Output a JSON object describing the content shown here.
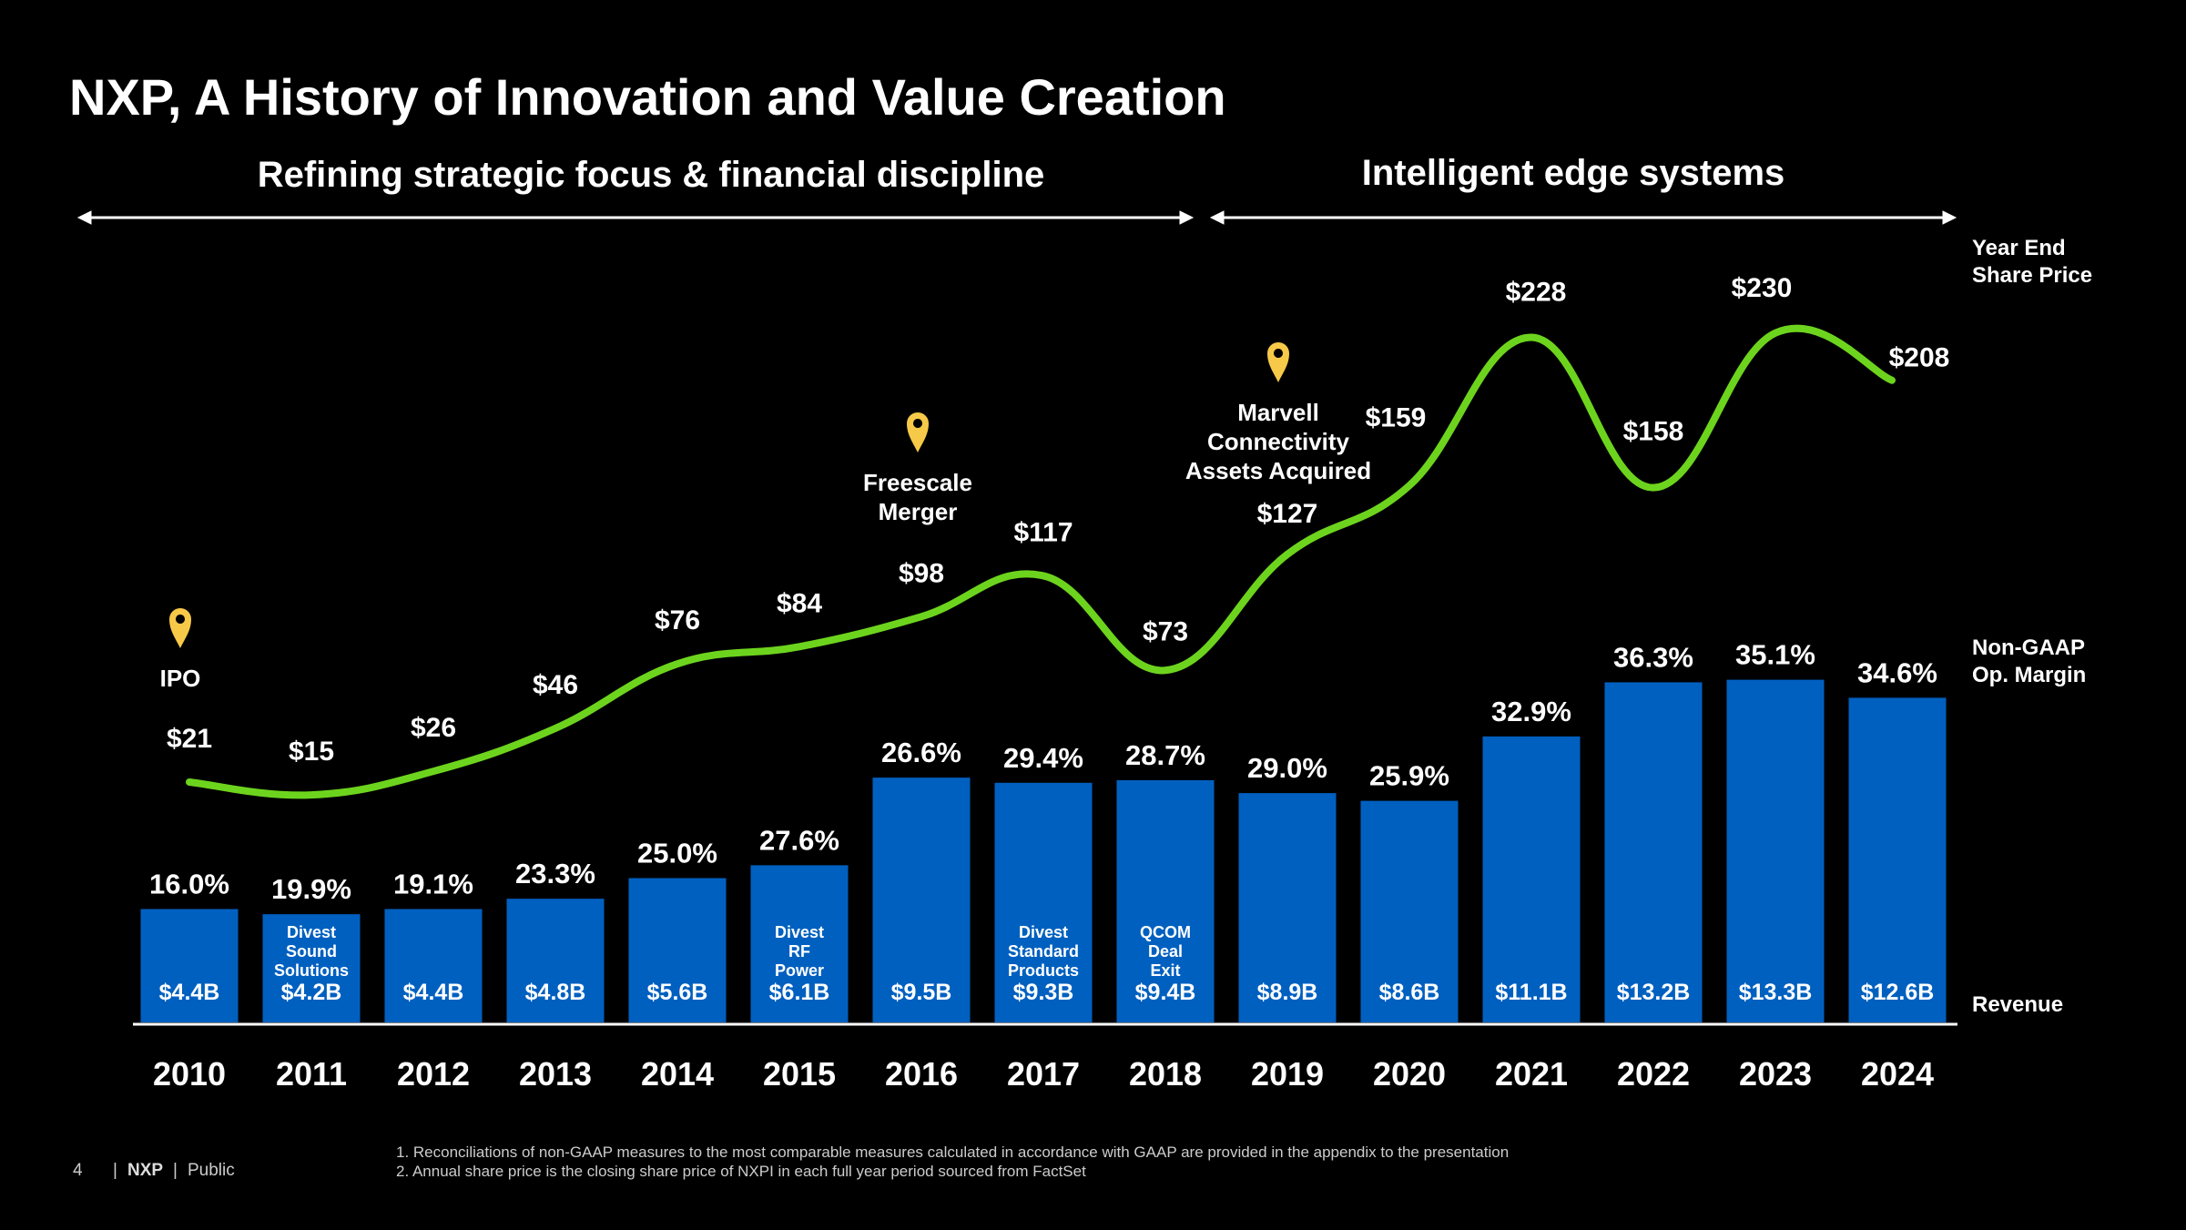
{
  "title": "NXP, A History of Innovation and Value Creation",
  "phases": [
    {
      "label": "Refining strategic focus & financial discipline"
    },
    {
      "label": "Intelligent edge systems"
    }
  ],
  "side_labels": {
    "share_price": [
      "Year End",
      "Share Price"
    ],
    "margin": [
      "Non-GAAP",
      "Op. Margin"
    ],
    "revenue": "Revenue"
  },
  "annotations": [
    {
      "year": "2010",
      "lines": [
        "IPO"
      ]
    },
    {
      "year": "2016",
      "lines": [
        "Freescale",
        "Merger"
      ]
    },
    {
      "year": "2019",
      "lines": [
        "Marvell",
        "Connectivity",
        "Assets Acquired"
      ]
    }
  ],
  "colors": {
    "bar": "#0060C0",
    "line": "#6DD41E",
    "pin": "#F7C948",
    "background": "#000000"
  },
  "chart_data": {
    "type": "bar",
    "title": "NXP, A History of Innovation and Value Creation",
    "categories": [
      "2010",
      "2011",
      "2012",
      "2013",
      "2014",
      "2015",
      "2016",
      "2017",
      "2018",
      "2019",
      "2020",
      "2021",
      "2022",
      "2023",
      "2024"
    ],
    "series": [
      {
        "name": "Revenue",
        "type": "bar",
        "unit": "$B",
        "values": [
          4.4,
          4.2,
          4.4,
          4.8,
          5.6,
          6.1,
          9.5,
          9.3,
          9.4,
          8.9,
          8.6,
          11.1,
          13.2,
          13.3,
          12.6
        ],
        "labels": [
          "$4.4B",
          "$4.2B",
          "$4.4B",
          "$4.8B",
          "$5.6B",
          "$6.1B",
          "$9.5B",
          "$9.3B",
          "$9.4B",
          "$8.9B",
          "$8.6B",
          "$11.1B",
          "$13.2B",
          "$13.3B",
          "$12.6B"
        ]
      },
      {
        "name": "Non-GAAP Op. Margin",
        "type": "label",
        "unit": "%",
        "values": [
          16.0,
          19.9,
          19.1,
          23.3,
          25.0,
          27.6,
          26.6,
          29.4,
          28.7,
          29.0,
          25.9,
          32.9,
          36.3,
          35.1,
          34.6
        ],
        "labels": [
          "16.0%",
          "19.9%",
          "19.1%",
          "23.3%",
          "25.0%",
          "27.6%",
          "26.6%",
          "29.4%",
          "28.7%",
          "29.0%",
          "25.9%",
          "32.9%",
          "36.3%",
          "35.1%",
          "34.6%"
        ]
      },
      {
        "name": "Year End Share Price",
        "type": "line",
        "unit": "$",
        "values": [
          21,
          15,
          26,
          46,
          76,
          84,
          98,
          117,
          73,
          127,
          159,
          228,
          158,
          230,
          208
        ],
        "labels": [
          "$21",
          "$15",
          "$26",
          "$46",
          "$76",
          "$84",
          "$98",
          "$117",
          "$73",
          "$127",
          "$159",
          "$228",
          "$158",
          "$230",
          "$208"
        ]
      }
    ],
    "bar_notes": [
      {
        "year": "2011",
        "lines": [
          "Divest",
          "Sound",
          "Solutions"
        ]
      },
      {
        "year": "2015",
        "lines": [
          "Divest",
          "RF",
          "Power"
        ]
      },
      {
        "year": "2017",
        "lines": [
          "Divest",
          "Standard",
          "Products"
        ]
      },
      {
        "year": "2018",
        "lines": [
          "QCOM",
          "Deal",
          "Exit"
        ]
      }
    ],
    "legend": "right"
  },
  "footer": {
    "page": "4",
    "brand": "NXP",
    "classification": "Public",
    "notes": [
      "1.   Reconciliations of non-GAAP measures to the most comparable measures calculated in accordance with GAAP are provided in the appendix to the presentation",
      "2.   Annual share price is the closing share price of NXPI in each full year period sourced from FactSet"
    ]
  }
}
